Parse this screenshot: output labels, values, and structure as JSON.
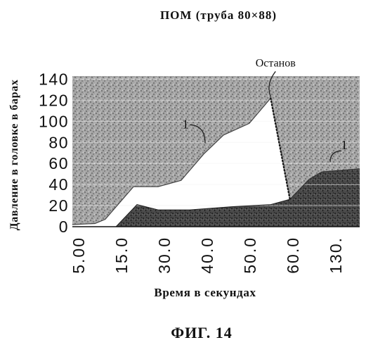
{
  "colors": {
    "background": "#ffffff",
    "upper_region": "#a6a6a6",
    "upper_dots": "#555555",
    "lower_region": "#4a4a4a",
    "lower_dots": "#1c1c1c",
    "between": "#ffffff",
    "text": "#111111"
  },
  "figure": {
    "caption": "ФИГ. 14"
  },
  "chart_data": {
    "type": "area",
    "title": "ПОМ (труба 80×88)",
    "xlabel": "Время в секундах",
    "ylabel": "Давление в головке в барах",
    "x_ticks": [
      "5.00",
      "15.0",
      "30.0",
      "40.0",
      "50.0",
      "60.0",
      "130."
    ],
    "x_tick_values": [
      5,
      15,
      30,
      40,
      50,
      60,
      130
    ],
    "y_ticks": [
      0,
      20,
      40,
      60,
      80,
      100,
      120,
      140
    ],
    "xlim": [
      3.5,
      169
    ],
    "ylim": [
      0,
      143
    ],
    "grid": true,
    "legend": "none",
    "upper_curve": [
      [
        3.5,
        2
      ],
      [
        8.8,
        3
      ],
      [
        11.2,
        7
      ],
      [
        19.2,
        38
      ],
      [
        27.8,
        38
      ],
      [
        33.9,
        44
      ],
      [
        39.2,
        69
      ],
      [
        43.8,
        87
      ],
      [
        49.8,
        98
      ],
      [
        54.8,
        122
      ]
    ],
    "lower_curve": [
      [
        13.7,
        0
      ],
      [
        20.4,
        21
      ],
      [
        27.8,
        16
      ],
      [
        35.9,
        16
      ],
      [
        45.7,
        19
      ],
      [
        54.8,
        21
      ],
      [
        59.3,
        26
      ]
    ],
    "tail_curve": [
      [
        59.3,
        26
      ],
      [
        86.4,
        45
      ],
      [
        107,
        52
      ],
      [
        169,
        55
      ]
    ],
    "annotations": [
      {
        "text": "Останов",
        "x": 54.8,
        "y": 122
      },
      {
        "text": "1",
        "x": 39.5,
        "y": 78
      },
      {
        "text": "1",
        "x": 120.8,
        "y": 60
      }
    ]
  }
}
